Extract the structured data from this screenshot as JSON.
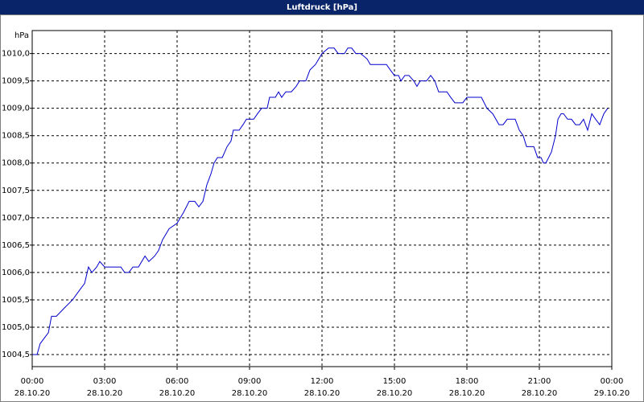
{
  "chart_data": {
    "type": "line",
    "title": "Luftdruck [hPa]",
    "y_label": "hPa",
    "color": "#0000cc",
    "grid": true,
    "xlim": [
      0,
      24
    ],
    "ylim": [
      1004.28,
      1010.42
    ],
    "xticks": [
      {
        "value": 0,
        "label": "00:00"
      },
      {
        "value": 3,
        "label": "03:00"
      },
      {
        "value": 6,
        "label": "06:00"
      },
      {
        "value": 9,
        "label": "09:00"
      },
      {
        "value": 12,
        "label": "12:00"
      },
      {
        "value": 15,
        "label": "15:00"
      },
      {
        "value": 18,
        "label": "18:00"
      },
      {
        "value": 21,
        "label": "21:00"
      },
      {
        "value": 24,
        "label": "00:00"
      }
    ],
    "xtick_dates": [
      "28.10.20",
      "28.10.20",
      "28.10.20",
      "28.10.20",
      "28.10.20",
      "28.10.20",
      "28.10.20",
      "28.10.20",
      "29.10.20"
    ],
    "yticks": [
      {
        "value": 1004.5,
        "label": "1004,5"
      },
      {
        "value": 1005.0,
        "label": "1005,0"
      },
      {
        "value": 1005.5,
        "label": "1005,5"
      },
      {
        "value": 1006.0,
        "label": "1006,0"
      },
      {
        "value": 1006.5,
        "label": "1006,5"
      },
      {
        "value": 1007.0,
        "label": "1007,0"
      },
      {
        "value": 1007.5,
        "label": "1007,5"
      },
      {
        "value": 1008.0,
        "label": "1008,0"
      },
      {
        "value": 1008.5,
        "label": "1008,5"
      },
      {
        "value": 1009.0,
        "label": "1009,0"
      },
      {
        "value": 1009.5,
        "label": "1009,5"
      },
      {
        "value": 1010.0,
        "label": "1010,0"
      }
    ],
    "x": [
      0,
      0.2,
      0.33,
      0.5,
      0.67,
      0.8,
      1.0,
      1.33,
      1.67,
      2.0,
      2.17,
      2.33,
      2.47,
      2.67,
      2.8,
      3.0,
      3.67,
      3.83,
      4.0,
      4.17,
      4.4,
      4.67,
      4.83,
      5.07,
      5.23,
      5.4,
      5.67,
      6.0,
      6.27,
      6.5,
      6.73,
      6.9,
      7.07,
      7.23,
      7.4,
      7.53,
      7.67,
      7.87,
      8.07,
      8.23,
      8.33,
      8.57,
      8.73,
      8.87,
      9.17,
      9.33,
      9.5,
      9.73,
      9.83,
      10.07,
      10.2,
      10.33,
      10.5,
      10.73,
      10.93,
      11.07,
      11.33,
      11.5,
      11.73,
      12.0,
      12.27,
      12.5,
      12.67,
      12.93,
      13.07,
      13.23,
      13.4,
      13.6,
      13.87,
      14.0,
      14.67,
      14.83,
      15.0,
      15.17,
      15.27,
      15.43,
      15.6,
      15.8,
      15.93,
      16.07,
      16.33,
      16.5,
      16.67,
      16.83,
      17.17,
      17.33,
      17.5,
      17.83,
      18.0,
      18.6,
      18.83,
      19.07,
      19.33,
      19.5,
      19.67,
      20.0,
      20.17,
      20.33,
      20.47,
      20.77,
      20.93,
      21.07,
      21.17,
      21.27,
      21.5,
      21.67,
      21.77,
      21.9,
      22.0,
      22.17,
      22.33,
      22.5,
      22.67,
      22.83,
      23.0,
      23.17,
      23.33,
      23.5,
      23.67,
      23.83
    ],
    "values": [
      1004.5,
      1004.5,
      1004.7,
      1004.8,
      1004.9,
      1005.2,
      1005.2,
      1005.35,
      1005.5,
      1005.7,
      1005.8,
      1006.1,
      1006.0,
      1006.1,
      1006.2,
      1006.1,
      1006.1,
      1006.0,
      1006.0,
      1006.1,
      1006.1,
      1006.3,
      1006.2,
      1006.3,
      1006.4,
      1006.6,
      1006.8,
      1006.9,
      1007.1,
      1007.3,
      1007.3,
      1007.2,
      1007.3,
      1007.6,
      1007.8,
      1008.0,
      1008.1,
      1008.1,
      1008.3,
      1008.4,
      1008.6,
      1008.6,
      1008.7,
      1008.8,
      1008.8,
      1008.9,
      1009.0,
      1009.0,
      1009.2,
      1009.2,
      1009.3,
      1009.2,
      1009.3,
      1009.3,
      1009.4,
      1009.5,
      1009.5,
      1009.7,
      1009.8,
      1010.0,
      1010.1,
      1010.1,
      1010.0,
      1010.0,
      1010.1,
      1010.1,
      1010.0,
      1010.0,
      1009.9,
      1009.8,
      1009.8,
      1009.7,
      1009.6,
      1009.6,
      1009.5,
      1009.6,
      1009.6,
      1009.5,
      1009.4,
      1009.5,
      1009.5,
      1009.6,
      1009.5,
      1009.3,
      1009.3,
      1009.2,
      1009.1,
      1009.1,
      1009.2,
      1009.2,
      1009.0,
      1008.9,
      1008.7,
      1008.7,
      1008.8,
      1008.8,
      1008.6,
      1008.5,
      1008.3,
      1008.3,
      1008.1,
      1008.1,
      1008.0,
      1008.0,
      1008.2,
      1008.5,
      1008.8,
      1008.9,
      1008.9,
      1008.8,
      1008.8,
      1008.7,
      1008.7,
      1008.8,
      1008.6,
      1008.9,
      1008.8,
      1008.7,
      1008.9,
      1009.0
    ]
  }
}
